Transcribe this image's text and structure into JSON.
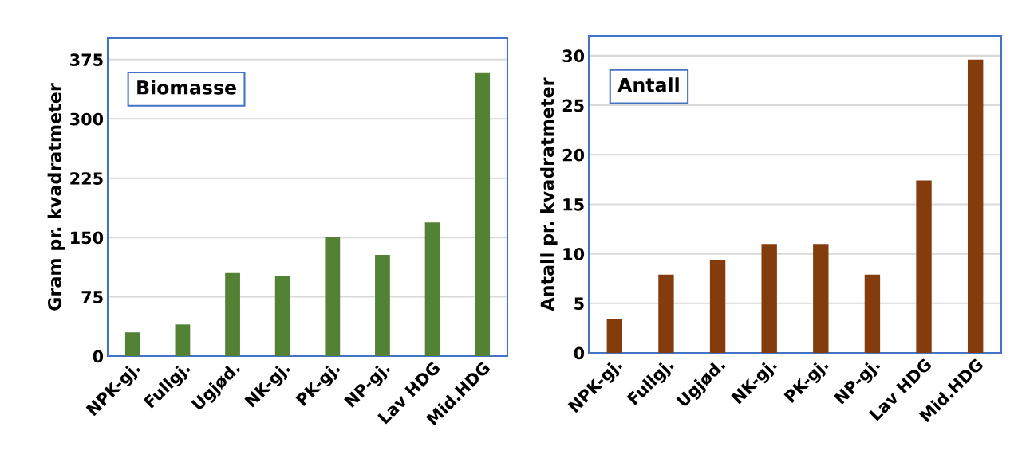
{
  "chart_data": [
    {
      "type": "bar",
      "title": "Biomasse",
      "ylabel": "Gram pr. kvadratmeter",
      "categories": [
        "NPK-gj.",
        "Fullgj.",
        "Ugjød.",
        "NK-gj.",
        "PK-gj.",
        "NP-gj.",
        "Lav HDG",
        "Mid.HDG"
      ],
      "values": [
        30,
        40,
        105,
        101,
        150,
        128,
        169,
        358
      ],
      "color": "#548235",
      "ylim": [
        0,
        402
      ],
      "yticks": [
        0,
        75,
        150,
        225,
        300,
        375
      ],
      "grid": "y"
    },
    {
      "type": "bar",
      "title": "Antall",
      "ylabel": "Antall pr. kvadratmeter",
      "categories": [
        "NPK-gj.",
        "Fullgj.",
        "Ugjød.",
        "NK-gj.",
        "PK-gj.",
        "NP-gj.",
        "Lav HDG",
        "Mid.HDG"
      ],
      "values": [
        3.4,
        7.9,
        9.4,
        11,
        11,
        7.9,
        17.4,
        29.6
      ],
      "color": "#843c0c",
      "ylim": [
        0,
        32
      ],
      "yticks": [
        0,
        5,
        10,
        15,
        20,
        25,
        30
      ],
      "grid": "y"
    }
  ]
}
